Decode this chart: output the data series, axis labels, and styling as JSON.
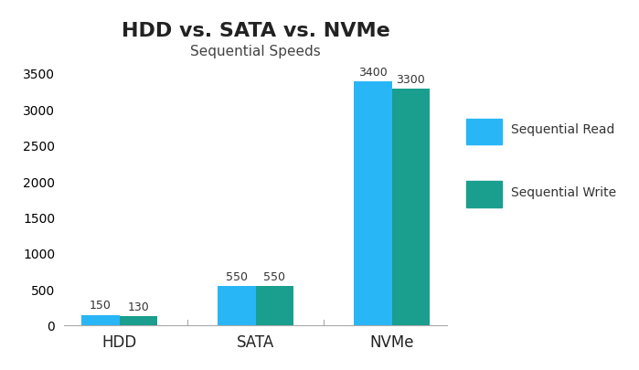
{
  "title": "HDD vs. SATA vs. NVMe",
  "subtitle": "Sequential Speeds",
  "categories": [
    "HDD",
    "SATA",
    "NVMe"
  ],
  "read_values": [
    150,
    550,
    3400
  ],
  "write_values": [
    130,
    550,
    3300
  ],
  "read_color": "#29B6F6",
  "write_color": "#1A9E8E",
  "ylim": [
    0,
    3500
  ],
  "yticks": [
    0,
    500,
    1000,
    1500,
    2000,
    2500,
    3000,
    3500
  ],
  "bar_width": 0.28,
  "background_color": "#ffffff",
  "legend_read": "Sequential Read",
  "legend_write": "Sequential Write",
  "title_fontsize": 16,
  "subtitle_fontsize": 11,
  "tick_fontsize": 10,
  "legend_fontsize": 10,
  "value_fontsize": 9
}
